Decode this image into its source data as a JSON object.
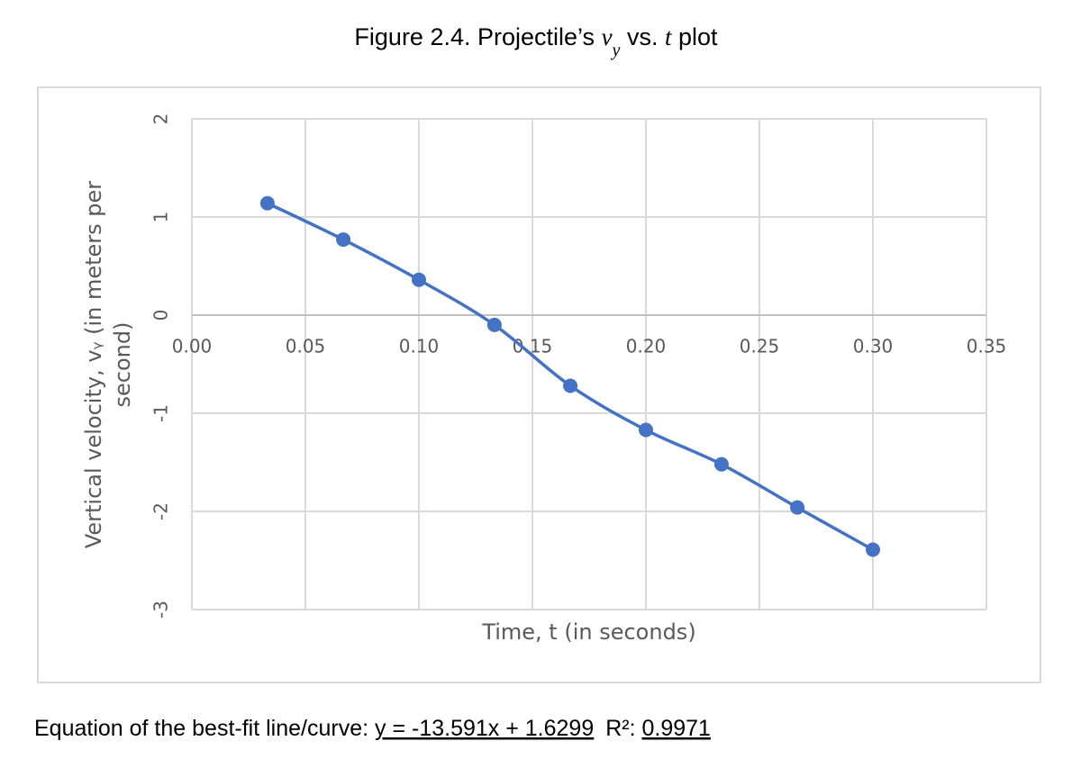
{
  "chart_data": {
    "type": "line",
    "title": [
      "Figure 2.4. Projectile’s",
      "v",
      "y",
      "vs.",
      "t",
      "plot"
    ],
    "xlabel": "Time, t (in seconds)",
    "ylabel": [
      "Vertical velocity, vᵧ (in meters per",
      "second)"
    ],
    "x": [
      0.0333,
      0.0667,
      0.1,
      0.1333,
      0.1667,
      0.2,
      0.2333,
      0.2667,
      0.3
    ],
    "series": [
      {
        "color": "#4472c4",
        "values": [
          1.14,
          0.77,
          0.36,
          -0.1,
          -0.72,
          -1.17,
          -1.52,
          -1.96,
          -2.39
        ]
      }
    ],
    "xlim": [
      0,
      0.35
    ],
    "xticks": [
      {
        "value": 0,
        "label": "0.00"
      },
      {
        "value": 0.05,
        "label": "0.05"
      },
      {
        "value": 0.1,
        "label": "0.10"
      },
      {
        "value": 0.15,
        "label": "0.15"
      },
      {
        "value": 0.2,
        "label": "0.20"
      },
      {
        "value": 0.25,
        "label": "0.25"
      },
      {
        "value": 0.3,
        "label": "0.30"
      },
      {
        "value": 0.35,
        "label": "0.35"
      }
    ],
    "ylim": [
      -3,
      2
    ],
    "yticks": [
      -3,
      -2,
      -1,
      0,
      1,
      2
    ],
    "grid": true
  },
  "caption": {
    "label": "Equation of the best-fit line/curve:",
    "equation": "y = -13.591x + 1.6299",
    "r2_label": "R²:",
    "r2": "0.9971"
  }
}
